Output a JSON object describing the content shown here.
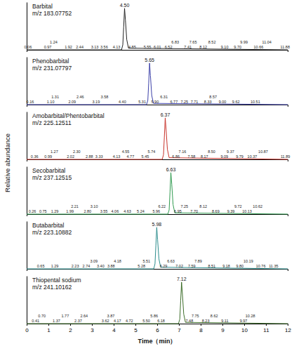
{
  "chart_data": [
    {
      "type": "line",
      "title": "Barbital",
      "subtitle": "m/z 183.07752",
      "ylabel": "Relative abundance",
      "color": "#222222",
      "x": [
        0,
        4.36,
        4.42,
        4.46,
        4.5,
        4.54,
        4.6,
        4.68,
        12
      ],
      "values": [
        0,
        0,
        12,
        55,
        100,
        72,
        25,
        4,
        0
      ],
      "peak_x": 4.5,
      "peak_label": "4.50",
      "annotation_x": [
        0.06,
        0.97,
        1.24,
        1.92,
        2.44,
        3.13,
        3.56,
        4.13,
        4.85,
        5.55,
        6.01,
        6.52,
        6.83,
        7.41,
        7.65,
        8.12,
        8.52,
        9.1,
        9.7,
        9.99,
        10.66,
        11.04,
        11.88
      ],
      "annotation_labels": [
        "0.06",
        "0.97",
        "1.24",
        "1.92",
        "2.44",
        "3.13",
        "3.56",
        "4.13",
        "4.85",
        "5.55",
        "6.01",
        "6.52",
        "6.83",
        "7.41",
        "7.65",
        "8.12",
        "8.52",
        "9.10",
        "9.70",
        "9.99",
        "10.66",
        "11.04",
        "11.88"
      ],
      "xlim": [
        0,
        12
      ],
      "ylim": [
        0,
        115
      ],
      "tick_labels": false
    },
    {
      "type": "line",
      "title": "Phenobarbital",
      "subtitle": "m/z 231.07797",
      "color": "#3b3fa8",
      "x": [
        0,
        5.51,
        5.57,
        5.61,
        5.65,
        5.69,
        5.75,
        5.83,
        12
      ],
      "values": [
        0,
        0,
        10,
        52,
        100,
        70,
        22,
        3,
        0
      ],
      "peak_x": 5.65,
      "peak_label": "5.65",
      "annotation_x": [
        0.16,
        1.1,
        1.31,
        2.09,
        2.46,
        3.19,
        3.58,
        4.4,
        5.31,
        5.9,
        6.31,
        6.77,
        7.25,
        7.71,
        8.33,
        8.57,
        9.0,
        9.62,
        10.51
      ],
      "annotation_labels": [
        "0.16",
        "1.10",
        "1.31",
        "2.09",
        "2.46",
        "3.19",
        "3.58",
        "4.40",
        "5.31",
        "5.90",
        "6.31",
        "6.77",
        "7.25",
        "7.71",
        "8.33",
        "8.57",
        "9.00",
        "9.62",
        "10.51"
      ],
      "xlim": [
        0,
        12
      ],
      "ylim": [
        0,
        115
      ],
      "tick_labels": false
    },
    {
      "type": "line",
      "title": "Amobarbital/Phentobarbital",
      "subtitle": "m/z 225.12511",
      "color": "#c8332b",
      "x": [
        0,
        6.23,
        6.29,
        6.33,
        6.37,
        6.41,
        6.47,
        6.55,
        12
      ],
      "values": [
        0,
        0,
        11,
        54,
        100,
        71,
        24,
        4,
        0
      ],
      "peak_x": 6.37,
      "peak_label": "6.37",
      "annotation_x": [
        0.36,
        0.99,
        1.27,
        2.02,
        2.3,
        2.88,
        3.33,
        4.13,
        4.55,
        4.77,
        5.45,
        5.74,
        6.86,
        7.16,
        7.58,
        8.17,
        8.5,
        9.09,
        9.37,
        9.79,
        10.37,
        10.87,
        11.89
      ],
      "annotation_labels": [
        "0.36",
        "0.99",
        "1.27",
        "2.02",
        "2.30",
        "2.88",
        "3.33",
        "4.13",
        "4.55",
        "4.77",
        "5.45",
        "5.74",
        "6.86",
        "7.16",
        "7.58",
        "8.17",
        "8.50",
        "9.09",
        "9.37",
        "9.79",
        "10.37",
        "10.87",
        "11.89"
      ],
      "xlim": [
        0,
        12
      ],
      "ylim": [
        0,
        115
      ],
      "tick_labels": false
    },
    {
      "type": "line",
      "title": "Secobarbital",
      "subtitle": "m/z 237.12515",
      "color": "#2e9a4e",
      "x": [
        0,
        6.49,
        6.55,
        6.59,
        6.63,
        6.67,
        6.73,
        6.81,
        12
      ],
      "values": [
        0,
        0,
        10,
        53,
        100,
        72,
        23,
        3,
        0
      ],
      "peak_x": 6.63,
      "peak_label": "6.63",
      "annotation_x": [
        0.26,
        0.75,
        1.29,
        1.99,
        2.21,
        2.8,
        3.1,
        3.55,
        4.06,
        4.63,
        5.24,
        5.96,
        6.22,
        6.95,
        7.25,
        7.7,
        8.12,
        8.69,
        9.39,
        9.72,
        10.13,
        10.62
      ],
      "annotation_labels": [
        "0.26",
        "0.75",
        "1.29",
        "1.99",
        "2.21",
        "2.80",
        "3.10",
        "3.55",
        "4.06",
        "4.63",
        "5.24",
        "5.96",
        "6.22",
        "6.95",
        "7.25",
        "7.70",
        "8.12",
        "8.69",
        "9.39",
        "9.72",
        "10.13",
        "10.62"
      ],
      "xlim": [
        0,
        12
      ],
      "ylim": [
        0,
        115
      ],
      "tick_labels": false
    },
    {
      "type": "line",
      "title": "Butabarbital",
      "subtitle": "m/z 223.10882",
      "color": "#2a8c8c",
      "x": [
        0,
        5.84,
        5.9,
        5.94,
        5.98,
        6.02,
        6.08,
        6.16,
        12
      ],
      "values": [
        0,
        0,
        12,
        56,
        100,
        70,
        24,
        4,
        0
      ],
      "peak_x": 5.98,
      "peak_label": "5.98",
      "annotation_x": [
        0.65,
        1.29,
        2.23,
        2.74,
        3.09,
        3.4,
        3.88,
        4.18,
        5.28,
        5.51,
        6.29,
        6.63,
        7.02,
        7.59,
        7.89,
        8.51,
        9.18,
        9.8,
        10.19,
        10.76,
        11.35
      ],
      "annotation_labels": [
        "0.65",
        "1.29",
        "2.23",
        "2.74",
        "3.09",
        "3.40",
        "3.88",
        "4.18",
        "5.28",
        "5.51",
        "6.29",
        "6.63",
        "7.02",
        "7.59",
        "7.89",
        "8.51",
        "9.18",
        "9.80",
        "10.19",
        "10.76",
        "11.35"
      ],
      "xlim": [
        0,
        12
      ],
      "ylim": [
        0,
        115
      ],
      "tick_labels": false
    },
    {
      "type": "line",
      "title": "Thiopental sodium",
      "subtitle": "m/z 241.10162",
      "color": "#3d6e2a",
      "x": [
        0,
        6.98,
        7.04,
        7.08,
        7.12,
        7.16,
        7.22,
        7.3,
        12
      ],
      "values": [
        0,
        0,
        11,
        55,
        100,
        71,
        23,
        3,
        0
      ],
      "peak_x": 7.12,
      "peak_label": "7.12",
      "annotation_x": [
        0.41,
        0.7,
        1.37,
        1.77,
        2.37,
        2.64,
        3.62,
        3.87,
        4.17,
        4.72,
        5.5,
        5.86,
        6.18,
        7.48,
        7.75,
        8.23,
        8.62,
        9.11,
        9.97,
        10.28
      ],
      "annotation_labels": [
        "0.41",
        "0.70",
        "1.37",
        "1.77",
        "2.37",
        "2.64",
        "3.62",
        "3.87",
        "4.17",
        "4.72",
        "5.50",
        "5.86",
        "6.18",
        "7.48",
        "7.75",
        "8.23",
        "8.62",
        "9.11",
        "9.97",
        "10.28"
      ],
      "xlabel": "Time（min）",
      "xlim": [
        0,
        12
      ],
      "ylim": [
        0,
        115
      ],
      "xticks": [
        0,
        1,
        2,
        3,
        4,
        5,
        6,
        7,
        8,
        9,
        10,
        11,
        12
      ],
      "tick_labels": "x"
    }
  ]
}
